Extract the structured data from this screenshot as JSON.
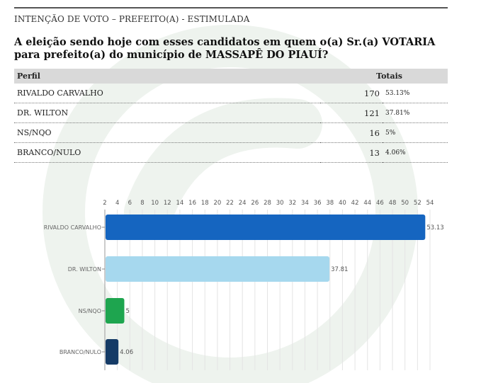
{
  "section_label": "INTENÇÃO DE VOTO – PREFEITO(A) - ESTIMULADA",
  "question": "A eleição sendo hoje com esses candidatos em quem o(a) Sr.(a) VOTARIA para prefeito(a) do município de MASSAPÊ DO PIAUÍ?",
  "table": {
    "headers": {
      "profile": "Perfil",
      "totals": "Totais"
    },
    "rows": [
      {
        "label": "RIVALDO CARVALHO",
        "count": "170",
        "pct": "53.13%"
      },
      {
        "label": "DR. WILTON",
        "count": "121",
        "pct": "37.81%"
      },
      {
        "label": "NS/NQO",
        "count": "16",
        "pct": "5%"
      },
      {
        "label": "BRANCO/NULO",
        "count": "13",
        "pct": "4.06%"
      }
    ]
  },
  "chart_data": {
    "type": "bar",
    "orientation": "horizontal",
    "categories": [
      "RIVALDO CARVALHO",
      "DR. WILTON",
      "NS/NQO",
      "BRANCO/NULO"
    ],
    "values": [
      53.13,
      37.81,
      5,
      4.06
    ],
    "data_labels": [
      "53.13",
      "37.81",
      "5",
      "4.06"
    ],
    "colors": [
      "#1565c0",
      "#a6d8ee",
      "#1ea54f",
      "#153b66"
    ],
    "xlim": [
      2,
      54
    ],
    "xticks": [
      2,
      4,
      6,
      8,
      10,
      12,
      14,
      16,
      18,
      20,
      22,
      24,
      26,
      28,
      30,
      32,
      34,
      36,
      38,
      40,
      42,
      44,
      46,
      48,
      50,
      52,
      54
    ],
    "x_axis_position": "top",
    "grid": true
  }
}
